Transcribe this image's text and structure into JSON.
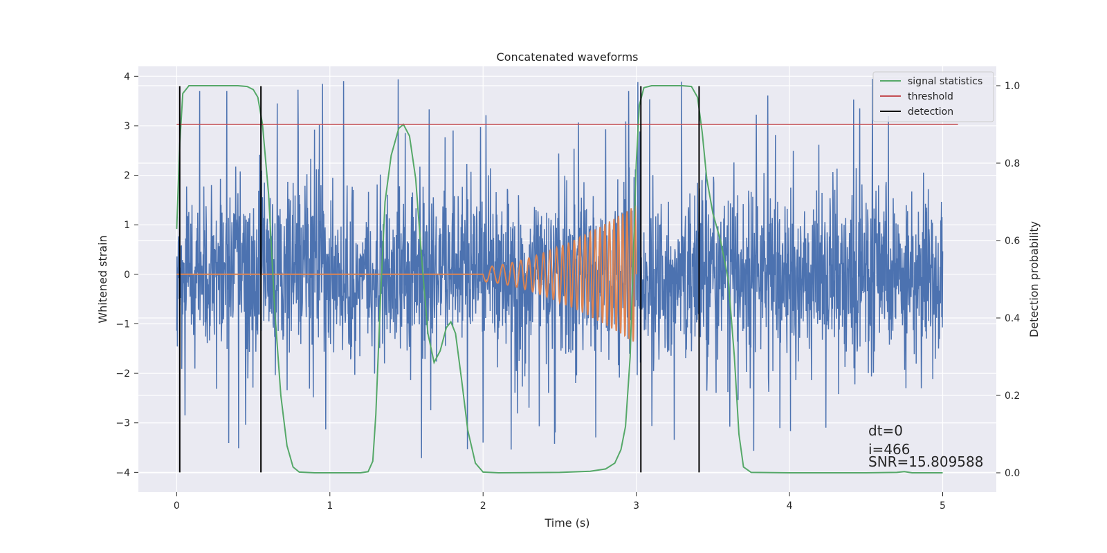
{
  "chart_data": {
    "type": "line",
    "title": "Concatenated waveforms",
    "xlabel": "Time (s)",
    "ylabel": "Whitened strain",
    "y2label": "Detection probability",
    "xlim": [
      -0.25,
      5.35
    ],
    "ylim": [
      -4.4,
      4.2
    ],
    "y2lim": [
      -0.05,
      1.05
    ],
    "x_ticks": [
      0,
      1,
      2,
      3,
      4,
      5
    ],
    "y_ticks": [
      -4,
      -3,
      -2,
      -1,
      0,
      1,
      2,
      3,
      4
    ],
    "y2_ticks": [
      0.0,
      0.2,
      0.4,
      0.6,
      0.8,
      1.0
    ],
    "x_tick_labels": [
      "0",
      "1",
      "2",
      "3",
      "4",
      "5"
    ],
    "y_tick_labels": [
      "−4",
      "−3",
      "−2",
      "−1",
      "0",
      "1",
      "2",
      "3",
      "4"
    ],
    "y2_tick_labels": [
      "0.0",
      "0.2",
      "0.4",
      "0.6",
      "0.8",
      "1.0"
    ],
    "grid": true,
    "legend_position": "top-right",
    "legend": [
      "signal statistics",
      "threshold",
      "detection"
    ],
    "colors": {
      "noise": "#4c72b0",
      "injected_signal": "#dd8452",
      "signal_statistics": "#55a868",
      "threshold": "#c44e52",
      "detection": "#000000",
      "background": "#eaeaf2",
      "grid": "#ffffff"
    },
    "series": [
      {
        "axis": "left",
        "note": "whitened strain noise, random-like within about ±2.5, spikes up to about ±4",
        "x_range": [
          0,
          5
        ],
        "amplitude": 0.9,
        "peak": 4.0
      },
      {
        "axis": "left",
        "note": "injected chirp signal",
        "x_range": [
          0,
          3
        ],
        "chirp_start": 2.0,
        "chirp_end": 3.0,
        "chirp_start_amplitude": 0.15,
        "chirp_end_amplitude": 1.4
      },
      {
        "name": "signal statistics",
        "axis": "right",
        "points": [
          [
            0.0,
            0.63
          ],
          [
            0.02,
            0.85
          ],
          [
            0.04,
            0.98
          ],
          [
            0.08,
            1.0
          ],
          [
            0.2,
            1.0
          ],
          [
            0.4,
            1.0
          ],
          [
            0.46,
            0.998
          ],
          [
            0.5,
            0.99
          ],
          [
            0.53,
            0.97
          ],
          [
            0.56,
            0.9
          ],
          [
            0.6,
            0.72
          ],
          [
            0.64,
            0.42
          ],
          [
            0.68,
            0.2
          ],
          [
            0.72,
            0.07
          ],
          [
            0.76,
            0.015
          ],
          [
            0.8,
            0.002
          ],
          [
            0.9,
            0.0
          ],
          [
            1.0,
            0.0
          ],
          [
            1.2,
            0.0
          ],
          [
            1.25,
            0.003
          ],
          [
            1.28,
            0.03
          ],
          [
            1.3,
            0.15
          ],
          [
            1.33,
            0.45
          ],
          [
            1.36,
            0.7
          ],
          [
            1.4,
            0.82
          ],
          [
            1.45,
            0.89
          ],
          [
            1.48,
            0.9
          ],
          [
            1.52,
            0.87
          ],
          [
            1.56,
            0.76
          ],
          [
            1.6,
            0.55
          ],
          [
            1.64,
            0.36
          ],
          [
            1.68,
            0.285
          ],
          [
            1.72,
            0.315
          ],
          [
            1.76,
            0.375
          ],
          [
            1.79,
            0.39
          ],
          [
            1.82,
            0.36
          ],
          [
            1.86,
            0.24
          ],
          [
            1.9,
            0.11
          ],
          [
            1.95,
            0.025
          ],
          [
            2.0,
            0.002
          ],
          [
            2.1,
            0.0
          ],
          [
            2.5,
            0.001
          ],
          [
            2.7,
            0.004
          ],
          [
            2.8,
            0.01
          ],
          [
            2.86,
            0.025
          ],
          [
            2.9,
            0.06
          ],
          [
            2.93,
            0.12
          ],
          [
            2.96,
            0.3
          ],
          [
            2.98,
            0.55
          ],
          [
            3.0,
            0.8
          ],
          [
            3.02,
            0.95
          ],
          [
            3.05,
            0.995
          ],
          [
            3.1,
            1.0
          ],
          [
            3.3,
            1.0
          ],
          [
            3.36,
            0.998
          ],
          [
            3.4,
            0.97
          ],
          [
            3.43,
            0.88
          ],
          [
            3.46,
            0.76
          ],
          [
            3.5,
            0.67
          ],
          [
            3.55,
            0.6
          ],
          [
            3.6,
            0.5
          ],
          [
            3.64,
            0.3
          ],
          [
            3.67,
            0.1
          ],
          [
            3.7,
            0.015
          ],
          [
            3.75,
            0.001
          ],
          [
            4.0,
            0.0
          ],
          [
            4.5,
            0.0
          ],
          [
            4.7,
            0.001
          ],
          [
            4.75,
            0.003
          ],
          [
            4.8,
            0.0
          ],
          [
            5.0,
            0.0
          ]
        ]
      },
      {
        "name": "threshold",
        "axis": "right",
        "points": [
          [
            0.0,
            0.9
          ],
          [
            5.1,
            0.9
          ]
        ]
      },
      {
        "name": "detection",
        "axis": "left",
        "type": "vlines",
        "x": [
          0.02,
          0.55,
          3.03,
          3.41
        ],
        "ymin": -4,
        "ymax": 3.8
      }
    ],
    "annotations": [
      "dt=0",
      "i=466",
      "SNR=15.809588"
    ]
  }
}
